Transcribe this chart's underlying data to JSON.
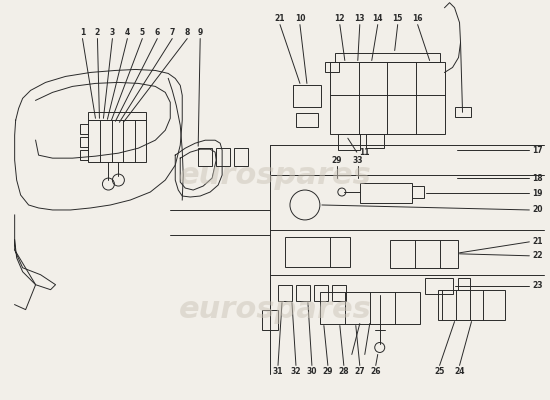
{
  "bg_color": "#f2efe9",
  "line_color": "#2a2a2a",
  "watermark_color": "#ccc5b8",
  "fig_w": 5.5,
  "fig_h": 4.0,
  "dpi": 100
}
